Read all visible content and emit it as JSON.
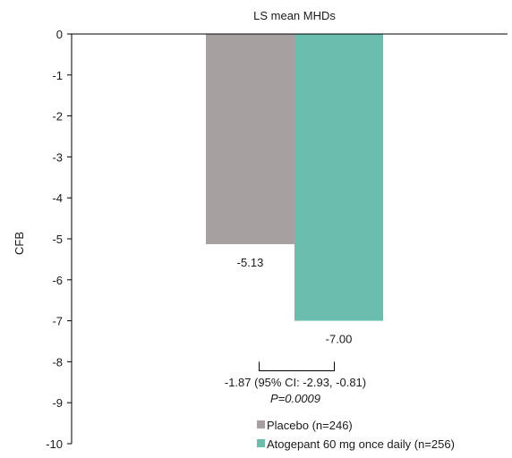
{
  "chart_data": {
    "type": "bar",
    "title": "LS mean MHDs",
    "xlabel": "",
    "ylabel": "CFB",
    "ylim": [
      -10,
      0
    ],
    "yticks": [
      0,
      -1,
      -2,
      -3,
      -4,
      -5,
      -6,
      -7,
      -8,
      -9,
      -10
    ],
    "grid": false,
    "legend_position": "bottom-right",
    "series": [
      {
        "name": "Placebo (n=246)",
        "value": -5.13,
        "label": "-5.13",
        "color": "#a6a0a0"
      },
      {
        "name": "Atogepant 60 mg once daily (n=256)",
        "value": -7.0,
        "label": "-7.00",
        "color": "#6bbdad"
      }
    ],
    "annotation": {
      "difference": "-1.87 (95% CI: -2.93, -0.81)",
      "p_value": "P=0.0009"
    }
  }
}
